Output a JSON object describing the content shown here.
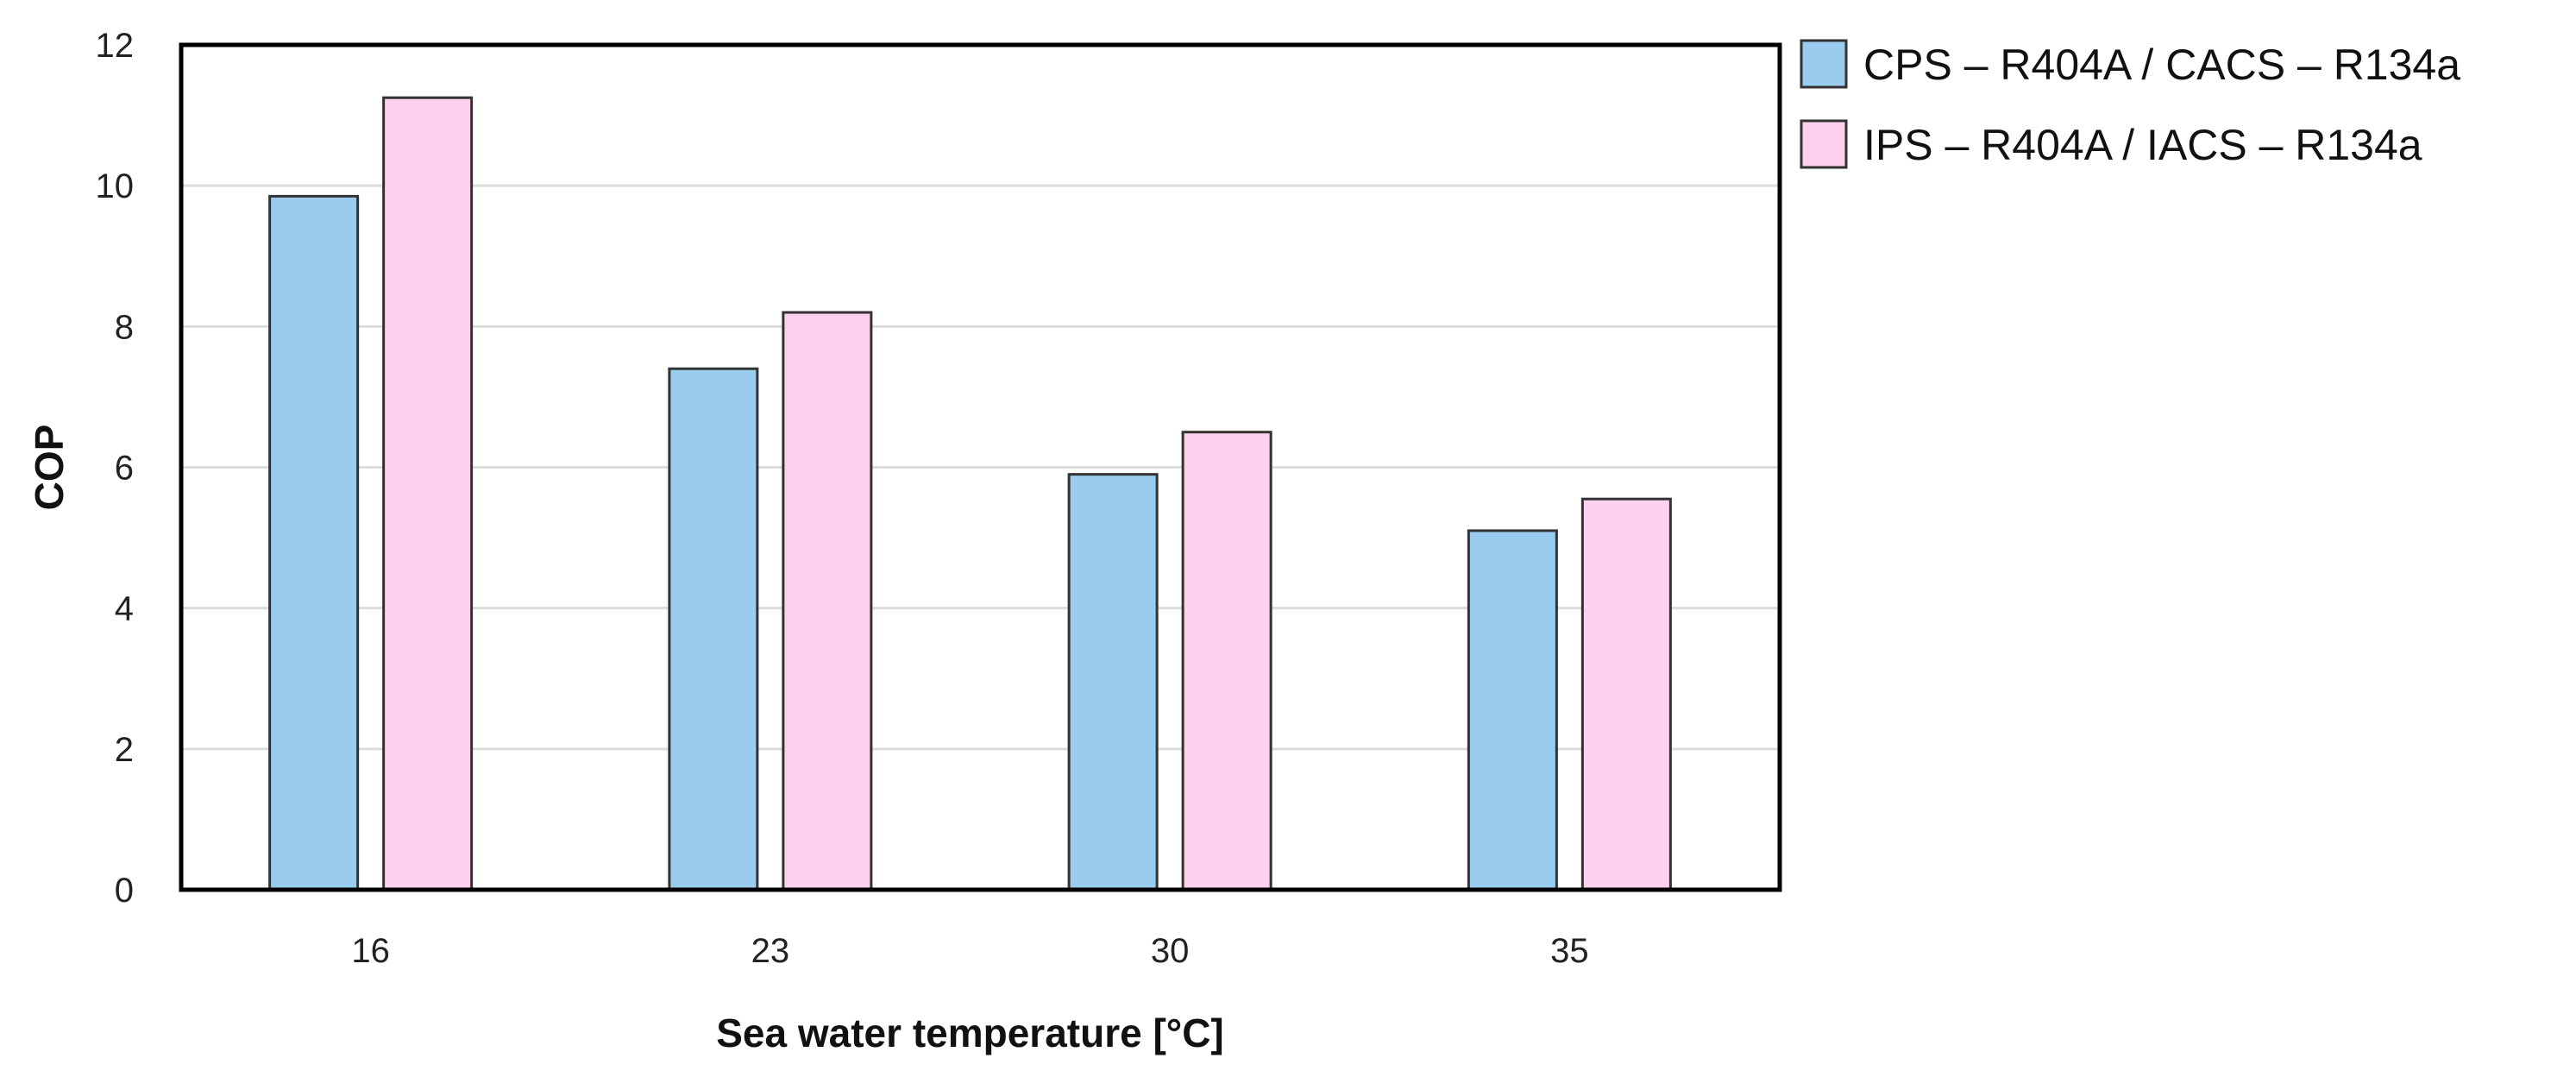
{
  "chart_data": {
    "type": "bar",
    "title": "",
    "xlabel": "Sea water temperature [°C]",
    "ylabel": "COP",
    "categories": [
      "16",
      "23",
      "30",
      "35"
    ],
    "ylim": [
      0,
      12
    ],
    "yticks": [
      0,
      2,
      4,
      6,
      8,
      10,
      12
    ],
    "grid": true,
    "legend_position": "right-top",
    "series": [
      {
        "name": "CPS – R404A / CACS – R134a",
        "color": "#99CCEE",
        "values": [
          9.85,
          7.4,
          5.9,
          5.1
        ]
      },
      {
        "name": "IPS – R404A / IACS – R134a",
        "color": "#FFD1EE",
        "values": [
          11.25,
          8.2,
          6.5,
          5.55
        ]
      }
    ]
  }
}
